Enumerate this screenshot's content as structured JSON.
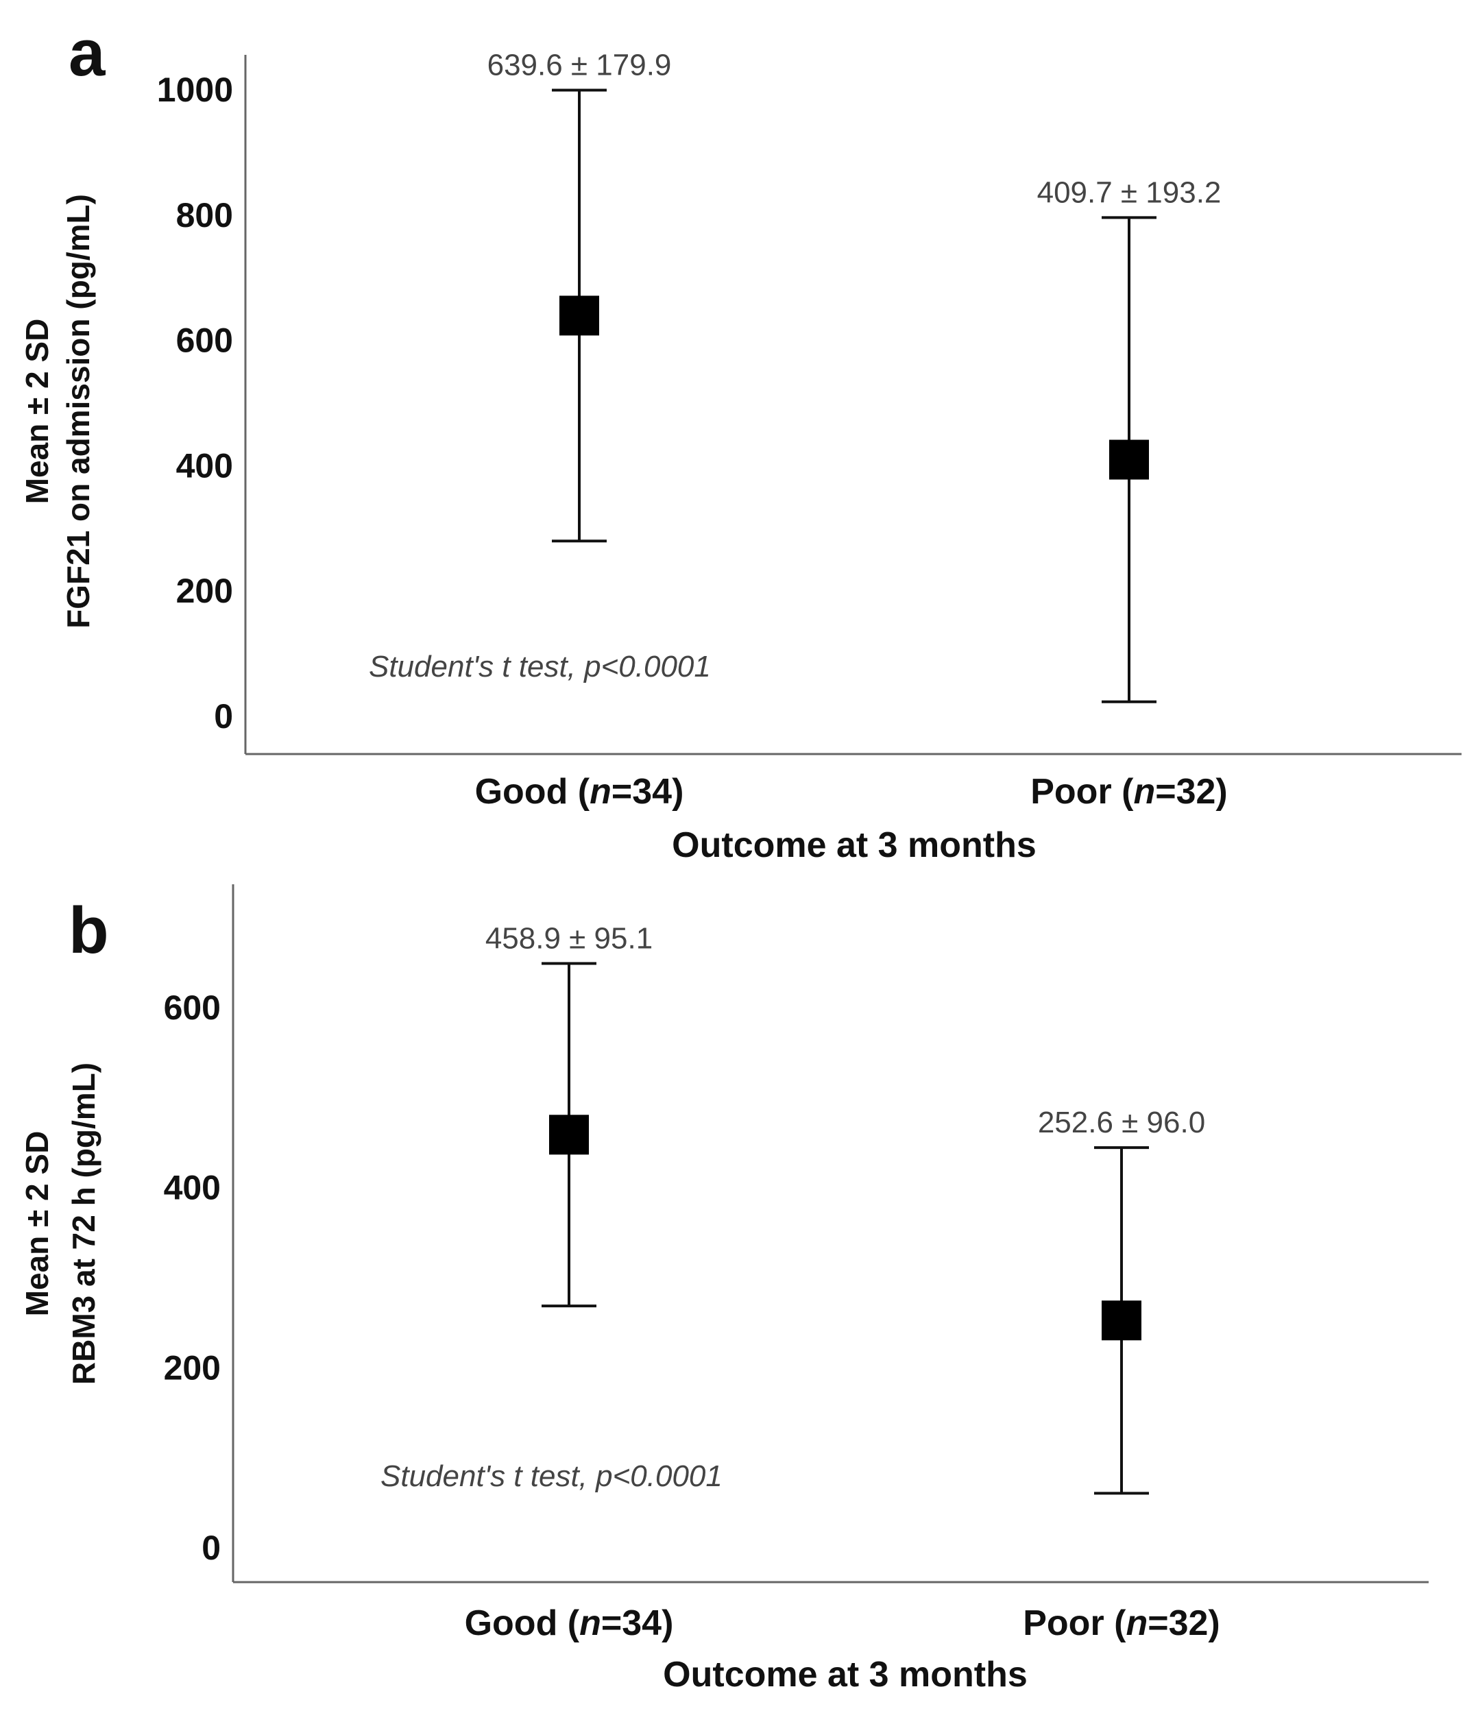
{
  "chart_data": [
    {
      "panel_label": "a",
      "type": "scatter",
      "ylabel_line1": "Mean ± 2 SD",
      "ylabel_line2": "FGF21 on admission (pg/mL)",
      "xlabel": "Outcome at 3 months",
      "ylim": [
        -55,
        1055
      ],
      "yticks": [
        0,
        200,
        400,
        600,
        800,
        1000
      ],
      "categories": [
        {
          "name": "Good",
          "n_label": "n",
          "n_value": "=34",
          "mean": 639.6,
          "sd": 179.9,
          "label": "639.6 ± 179.9"
        },
        {
          "name": "Poor",
          "n_label": "n",
          "n_value": "=32",
          "mean": 409.7,
          "sd": 193.2,
          "label": "409.7 ± 193.2"
        }
      ],
      "annotation": "Student's t test, p<0.0001"
    },
    {
      "panel_label": "b",
      "type": "scatter",
      "ylabel_line1": "Mean ± 2 SD",
      "ylabel_line2": "RBM3 at 72 h (pg/mL)",
      "xlabel": "Outcome at 3 months",
      "ylim": [
        -40,
        745
      ],
      "yticks": [
        0,
        200,
        400,
        600
      ],
      "categories": [
        {
          "name": "Good",
          "n_label": "n",
          "n_value": "=34",
          "mean": 458.9,
          "sd": 95.1,
          "label": "458.9 ± 95.1"
        },
        {
          "name": "Poor",
          "n_label": "n",
          "n_value": "=32",
          "mean": 252.6,
          "sd": 96.0,
          "label": "252.6 ± 96.0"
        }
      ],
      "annotation": "Student's t test, p<0.0001"
    }
  ]
}
